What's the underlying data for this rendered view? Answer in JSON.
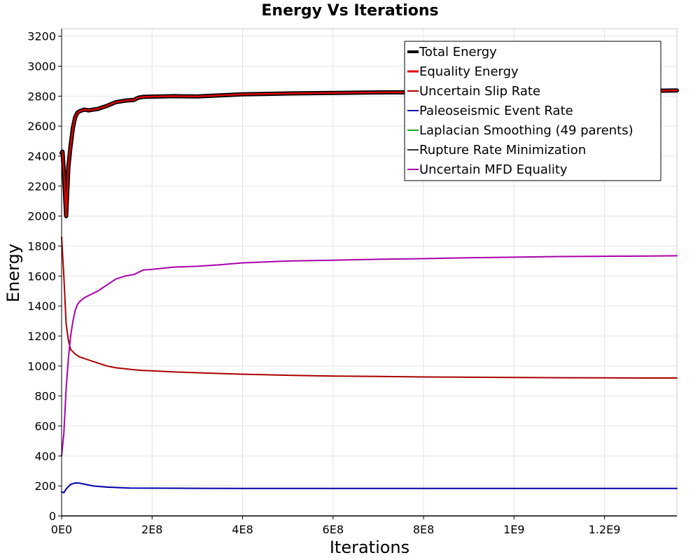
{
  "chart_data": {
    "type": "line",
    "title": "Energy Vs Iterations",
    "xlabel": "Iterations",
    "ylabel": "Energy",
    "xlim": [
      0,
      1360000000
    ],
    "ylim": [
      0,
      3250
    ],
    "x_ticks": [
      {
        "value": 0,
        "label": "0E0"
      },
      {
        "value": 200000000,
        "label": "2E8"
      },
      {
        "value": 400000000,
        "label": "4E8"
      },
      {
        "value": 600000000,
        "label": "6E8"
      },
      {
        "value": 800000000,
        "label": "8E8"
      },
      {
        "value": 1000000000,
        "label": "1E9"
      },
      {
        "value": 1200000000,
        "label": "1.2E9"
      }
    ],
    "y_ticks": [
      {
        "value": 0,
        "label": "0"
      },
      {
        "value": 200,
        "label": "200"
      },
      {
        "value": 400,
        "label": "400"
      },
      {
        "value": 600,
        "label": "600"
      },
      {
        "value": 800,
        "label": "800"
      },
      {
        "value": 1000,
        "label": "1000"
      },
      {
        "value": 1200,
        "label": "1200"
      },
      {
        "value": 1400,
        "label": "1400"
      },
      {
        "value": 1600,
        "label": "1600"
      },
      {
        "value": 1800,
        "label": "1800"
      },
      {
        "value": 2000,
        "label": "2000"
      },
      {
        "value": 2200,
        "label": "2200"
      },
      {
        "value": 2400,
        "label": "2400"
      },
      {
        "value": 2600,
        "label": "2600"
      },
      {
        "value": 2800,
        "label": "2800"
      },
      {
        "value": 3000,
        "label": "3000"
      },
      {
        "value": 3200,
        "label": "3200"
      }
    ],
    "grid": true,
    "legend_position": "top-right",
    "series": [
      {
        "name": "Total Energy",
        "color": "#000000",
        "x": [
          0,
          2000000,
          5000000,
          10000000,
          15000000,
          20000000,
          25000000,
          30000000,
          35000000,
          40000000,
          50000000,
          60000000,
          70000000,
          80000000,
          90000000,
          100000000,
          120000000,
          140000000,
          160000000,
          170000000,
          180000000,
          200000000,
          250000000,
          300000000,
          350000000,
          400000000,
          500000000,
          600000000,
          700000000,
          800000000,
          900000000,
          1000000000,
          1100000000,
          1200000000,
          1300000000,
          1360000000
        ],
        "y": [
          2420,
          2430,
          2300,
          2000,
          2330,
          2470,
          2590,
          2660,
          2690,
          2700,
          2710,
          2705,
          2710,
          2715,
          2725,
          2735,
          2760,
          2770,
          2775,
          2790,
          2795,
          2797,
          2800,
          2798,
          2805,
          2812,
          2818,
          2822,
          2825,
          2826,
          2828,
          2830,
          2832,
          2834,
          2836,
          2838
        ]
      },
      {
        "name": "Equality Energy",
        "color": "#dd0000",
        "x": [
          0,
          2000000,
          5000000,
          10000000,
          15000000,
          20000000,
          25000000,
          30000000,
          35000000,
          40000000,
          50000000,
          60000000,
          70000000,
          80000000,
          90000000,
          100000000,
          120000000,
          140000000,
          160000000,
          170000000,
          180000000,
          200000000,
          250000000,
          300000000,
          350000000,
          400000000,
          500000000,
          600000000,
          700000000,
          800000000,
          900000000,
          1000000000,
          1100000000,
          1200000000,
          1300000000,
          1360000000
        ],
        "y": [
          2420,
          2430,
          2300,
          2000,
          2330,
          2470,
          2590,
          2660,
          2690,
          2700,
          2710,
          2705,
          2710,
          2715,
          2725,
          2735,
          2760,
          2770,
          2775,
          2790,
          2795,
          2797,
          2800,
          2798,
          2805,
          2812,
          2818,
          2822,
          2825,
          2826,
          2828,
          2830,
          2832,
          2834,
          2836,
          2838
        ]
      },
      {
        "name": "Uncertain Slip Rate",
        "color": "#aa0000",
        "x": [
          0,
          5000000,
          10000000,
          15000000,
          20000000,
          30000000,
          40000000,
          50000000,
          60000000,
          70000000,
          80000000,
          90000000,
          100000000,
          120000000,
          140000000,
          160000000,
          180000000,
          200000000,
          250000000,
          300000000,
          400000000,
          500000000,
          600000000,
          700000000,
          800000000,
          900000000,
          1000000000,
          1100000000,
          1200000000,
          1300000000,
          1360000000
        ],
        "y": [
          1860,
          1600,
          1280,
          1170,
          1110,
          1080,
          1060,
          1050,
          1040,
          1030,
          1020,
          1010,
          1000,
          988,
          982,
          975,
          970,
          968,
          960,
          955,
          945,
          938,
          933,
          930,
          927,
          925,
          923,
          922,
          921,
          920,
          920
        ]
      },
      {
        "name": "Paleoseismic Event Rate",
        "color": "#0000aa",
        "x": [
          0,
          5000000,
          10000000,
          20000000,
          30000000,
          40000000,
          50000000,
          70000000,
          100000000,
          150000000,
          200000000,
          300000000,
          400000000,
          600000000,
          800000000,
          1000000000,
          1200000000,
          1360000000
        ],
        "y": [
          160,
          155,
          180,
          210,
          220,
          218,
          212,
          200,
          192,
          186,
          185,
          184,
          183,
          183,
          183,
          183,
          183,
          183
        ]
      },
      {
        "name": "Laplacian Smoothing (49 parents)",
        "color": "#22aa22",
        "x": [],
        "y": []
      },
      {
        "name": "Rupture Rate Minimization",
        "color": "#333333",
        "x": [],
        "y": []
      },
      {
        "name": "Uncertain MFD Equality",
        "color": "#aa00aa",
        "x": [
          0,
          5000000,
          10000000,
          15000000,
          20000000,
          25000000,
          30000000,
          35000000,
          40000000,
          50000000,
          60000000,
          70000000,
          80000000,
          90000000,
          100000000,
          120000000,
          140000000,
          160000000,
          170000000,
          180000000,
          200000000,
          250000000,
          300000000,
          350000000,
          400000000,
          500000000,
          600000000,
          700000000,
          800000000,
          900000000,
          1000000000,
          1100000000,
          1200000000,
          1300000000,
          1360000000
        ],
        "y": [
          400,
          550,
          850,
          1050,
          1200,
          1300,
          1370,
          1410,
          1430,
          1455,
          1470,
          1485,
          1500,
          1520,
          1540,
          1580,
          1600,
          1610,
          1625,
          1640,
          1645,
          1660,
          1665,
          1675,
          1688,
          1700,
          1706,
          1712,
          1716,
          1722,
          1726,
          1730,
          1732,
          1734,
          1735
        ]
      }
    ]
  }
}
